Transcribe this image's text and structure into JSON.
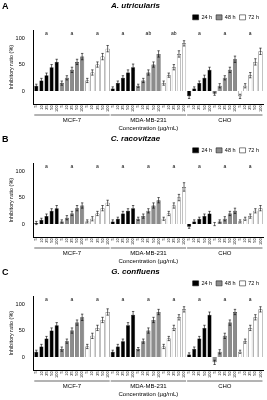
{
  "chart_data": [
    {
      "type": "bar",
      "panel": "A",
      "title": "A. utricularis",
      "x_label": "Concentration (µg/mL)",
      "y_label": "Inhibitory ratio (%)",
      "categories": [
        "5",
        "10",
        "25",
        "50",
        "100",
        "5",
        "10",
        "25",
        "50",
        "100",
        "5",
        "10",
        "25",
        "50",
        "100",
        "5",
        "10",
        "25",
        "50",
        "100",
        "5",
        "10",
        "25",
        "50",
        "100",
        "5",
        "10",
        "25",
        "50",
        "100",
        "5",
        "10",
        "25",
        "50",
        "100",
        "5",
        "10",
        "25",
        "50",
        "100",
        "5",
        "10",
        "25",
        "50",
        "100"
      ],
      "group_labels": [
        "MCF-7",
        "MDA-MB-231",
        "CHO"
      ],
      "group_letters": [
        "a",
        "a",
        "a",
        "a",
        "ab",
        "ab",
        "a",
        "a",
        "a"
      ],
      "series": [
        {
          "name": "24 h",
          "color": "#000000",
          "values": [
            10,
            20,
            30,
            45,
            55,
            null,
            null,
            null,
            null,
            null,
            null,
            null,
            null,
            null,
            null,
            5,
            15,
            25,
            35,
            45,
            null,
            null,
            null,
            null,
            null,
            null,
            null,
            null,
            null,
            null,
            -10,
            5,
            15,
            25,
            40,
            null,
            null,
            null,
            null,
            null,
            null,
            null,
            null,
            null,
            null
          ],
          "errors": [
            3,
            4,
            4,
            5,
            5,
            null,
            null,
            null,
            null,
            null,
            null,
            null,
            null,
            null,
            null,
            3,
            4,
            4,
            5,
            6,
            null,
            null,
            null,
            null,
            null,
            null,
            null,
            null,
            null,
            null,
            4,
            3,
            4,
            5,
            5,
            null,
            null,
            null,
            null,
            null,
            null,
            null,
            null,
            null,
            null
          ]
        },
        {
          "name": "48 h",
          "color": "#8c8c8c",
          "values": [
            null,
            null,
            null,
            null,
            null,
            15,
            25,
            40,
            55,
            65,
            null,
            null,
            null,
            null,
            null,
            null,
            null,
            null,
            null,
            null,
            10,
            20,
            35,
            50,
            70,
            null,
            null,
            null,
            null,
            null,
            null,
            null,
            null,
            null,
            null,
            -5,
            10,
            25,
            40,
            60,
            null,
            null,
            null,
            null,
            null
          ],
          "errors": [
            null,
            null,
            null,
            null,
            null,
            4,
            4,
            5,
            5,
            6,
            null,
            null,
            null,
            null,
            null,
            null,
            null,
            null,
            null,
            null,
            3,
            4,
            5,
            5,
            6,
            null,
            null,
            null,
            null,
            null,
            null,
            null,
            null,
            null,
            null,
            3,
            4,
            4,
            5,
            6,
            null,
            null,
            null,
            null,
            null
          ]
        },
        {
          "name": "72 h",
          "color": "#ffffff",
          "values": [
            null,
            null,
            null,
            null,
            null,
            null,
            null,
            null,
            null,
            null,
            20,
            35,
            50,
            65,
            80,
            null,
            null,
            null,
            null,
            null,
            null,
            null,
            null,
            null,
            null,
            15,
            30,
            45,
            70,
            90,
            null,
            null,
            null,
            null,
            null,
            null,
            null,
            null,
            null,
            null,
            -10,
            10,
            30,
            55,
            75
          ],
          "errors": [
            null,
            null,
            null,
            null,
            null,
            null,
            null,
            null,
            null,
            null,
            4,
            5,
            5,
            6,
            6,
            null,
            null,
            null,
            null,
            null,
            null,
            null,
            null,
            null,
            null,
            4,
            4,
            5,
            6,
            5,
            null,
            null,
            null,
            null,
            null,
            null,
            null,
            null,
            null,
            null,
            4,
            4,
            5,
            6,
            6
          ]
        }
      ],
      "ylim": [
        -25,
        115
      ],
      "yticks": [
        0,
        50,
        100
      ],
      "grid": false,
      "legend": "top-right"
    },
    {
      "type": "bar",
      "panel": "B",
      "title": "C. racovitzae",
      "x_label": "Concentration (µg/mL)",
      "y_label": "Inhibitory ratio (%)",
      "categories": [
        "5",
        "10",
        "25",
        "50",
        "100",
        "5",
        "10",
        "25",
        "50",
        "100",
        "5",
        "10",
        "25",
        "50",
        "100",
        "5",
        "10",
        "25",
        "50",
        "100",
        "5",
        "10",
        "25",
        "50",
        "100",
        "5",
        "10",
        "25",
        "50",
        "100",
        "5",
        "10",
        "25",
        "50",
        "100",
        "5",
        "10",
        "25",
        "50",
        "100",
        "5",
        "10",
        "25",
        "50",
        "100"
      ],
      "group_labels": [
        "MCF-7",
        "MDA-MB-231",
        "CHO"
      ],
      "group_letters": [
        "a",
        "a",
        "a",
        "a",
        "a",
        "a",
        "a",
        "a",
        "a"
      ],
      "series": [
        {
          "name": "24 h",
          "color": "#000000",
          "values": [
            2,
            8,
            15,
            25,
            30,
            null,
            null,
            null,
            null,
            null,
            null,
            null,
            null,
            null,
            null,
            5,
            10,
            20,
            25,
            30,
            null,
            null,
            null,
            null,
            null,
            null,
            null,
            null,
            null,
            null,
            -5,
            5,
            10,
            15,
            20,
            null,
            null,
            null,
            null,
            null,
            null,
            null,
            null,
            null,
            null
          ],
          "errors": [
            3,
            3,
            4,
            4,
            5,
            null,
            null,
            null,
            null,
            null,
            null,
            null,
            null,
            null,
            null,
            3,
            3,
            4,
            4,
            5,
            null,
            null,
            null,
            null,
            null,
            null,
            null,
            null,
            null,
            null,
            3,
            3,
            3,
            4,
            4,
            null,
            null,
            null,
            null,
            null,
            null,
            null,
            null,
            null,
            null
          ]
        },
        {
          "name": "48 h",
          "color": "#8c8c8c",
          "values": [
            null,
            null,
            null,
            null,
            null,
            5,
            12,
            20,
            30,
            35,
            null,
            null,
            null,
            null,
            null,
            null,
            null,
            null,
            null,
            null,
            10,
            15,
            25,
            35,
            45,
            null,
            null,
            null,
            null,
            null,
            null,
            null,
            null,
            null,
            null,
            0,
            5,
            10,
            20,
            25,
            null,
            null,
            null,
            null,
            null
          ],
          "errors": [
            null,
            null,
            null,
            null,
            null,
            3,
            4,
            4,
            5,
            5,
            null,
            null,
            null,
            null,
            null,
            null,
            null,
            null,
            null,
            null,
            3,
            4,
            4,
            5,
            5,
            null,
            null,
            null,
            null,
            null,
            null,
            null,
            null,
            null,
            null,
            3,
            3,
            4,
            4,
            5,
            null,
            null,
            null,
            null,
            null
          ]
        },
        {
          "name": "72 h",
          "color": "#ffffff",
          "values": [
            null,
            null,
            null,
            null,
            null,
            null,
            null,
            null,
            null,
            null,
            5,
            10,
            20,
            30,
            40,
            null,
            null,
            null,
            null,
            null,
            null,
            null,
            null,
            null,
            null,
            10,
            20,
            35,
            50,
            70,
            null,
            null,
            null,
            null,
            null,
            null,
            null,
            null,
            null,
            null,
            5,
            10,
            15,
            25,
            30
          ],
          "errors": [
            null,
            null,
            null,
            null,
            null,
            null,
            null,
            null,
            null,
            null,
            3,
            4,
            4,
            5,
            5,
            null,
            null,
            null,
            null,
            null,
            null,
            null,
            null,
            null,
            null,
            3,
            4,
            5,
            6,
            8,
            null,
            null,
            null,
            null,
            null,
            null,
            null,
            null,
            null,
            null,
            3,
            3,
            4,
            4,
            5
          ]
        }
      ],
      "ylim": [
        -25,
        115
      ],
      "yticks": [
        0,
        50,
        100
      ],
      "grid": false,
      "legend": "top-right"
    },
    {
      "type": "bar",
      "panel": "C",
      "title": "G. confluens",
      "x_label": "Concentration (µg/mL)",
      "y_label": "Inhibitory ratio (%)",
      "categories": [
        "5",
        "10",
        "25",
        "50",
        "100",
        "5",
        "10",
        "25",
        "50",
        "100",
        "5",
        "10",
        "25",
        "50",
        "100",
        "5",
        "10",
        "25",
        "50",
        "100",
        "5",
        "10",
        "25",
        "50",
        "100",
        "5",
        "10",
        "25",
        "50",
        "100",
        "5",
        "10",
        "25",
        "50",
        "100",
        "5",
        "10",
        "25",
        "50",
        "100",
        "5",
        "10",
        "25",
        "50",
        "100"
      ],
      "group_labels": [
        "MCF-7",
        "MDA-MB-231",
        "CHO"
      ],
      "group_letters": [
        "a",
        "a",
        "a",
        "a",
        "a",
        "a",
        "a",
        "a",
        "a"
      ],
      "series": [
        {
          "name": "24 h",
          "color": "#000000",
          "values": [
            10,
            20,
            35,
            50,
            60,
            null,
            null,
            null,
            null,
            null,
            null,
            null,
            null,
            null,
            null,
            10,
            20,
            30,
            60,
            80,
            null,
            null,
            null,
            null,
            null,
            null,
            null,
            null,
            null,
            null,
            5,
            15,
            35,
            55,
            80,
            null,
            null,
            null,
            null,
            null,
            null,
            null,
            null,
            null,
            null
          ],
          "errors": [
            3,
            4,
            4,
            5,
            5,
            null,
            null,
            null,
            null,
            null,
            null,
            null,
            null,
            null,
            null,
            3,
            4,
            4,
            5,
            6,
            null,
            null,
            null,
            null,
            null,
            null,
            null,
            null,
            null,
            null,
            3,
            4,
            4,
            5,
            5,
            null,
            null,
            null,
            null,
            null,
            null,
            null,
            null,
            null,
            null
          ]
        },
        {
          "name": "48 h",
          "color": "#8c8c8c",
          "values": [
            null,
            null,
            null,
            null,
            null,
            15,
            30,
            50,
            65,
            75,
            null,
            null,
            null,
            null,
            null,
            null,
            null,
            null,
            null,
            null,
            15,
            30,
            50,
            70,
            85,
            null,
            null,
            null,
            null,
            null,
            null,
            null,
            null,
            null,
            null,
            -10,
            10,
            40,
            65,
            85,
            null,
            null,
            null,
            null,
            null
          ],
          "errors": [
            null,
            null,
            null,
            null,
            null,
            4,
            4,
            5,
            5,
            6,
            null,
            null,
            null,
            null,
            null,
            null,
            null,
            null,
            null,
            null,
            3,
            4,
            5,
            5,
            5,
            null,
            null,
            null,
            null,
            null,
            null,
            null,
            null,
            null,
            null,
            4,
            4,
            5,
            5,
            5,
            null,
            null,
            null,
            null,
            null
          ]
        },
        {
          "name": "72 h",
          "color": "#ffffff",
          "values": [
            null,
            null,
            null,
            null,
            null,
            null,
            null,
            null,
            null,
            null,
            20,
            40,
            55,
            70,
            85,
            null,
            null,
            null,
            null,
            null,
            null,
            null,
            null,
            null,
            null,
            20,
            35,
            55,
            75,
            90,
            null,
            null,
            null,
            null,
            null,
            null,
            null,
            null,
            null,
            null,
            10,
            30,
            55,
            75,
            90
          ],
          "errors": [
            null,
            null,
            null,
            null,
            null,
            null,
            null,
            null,
            null,
            null,
            4,
            5,
            5,
            5,
            6,
            null,
            null,
            null,
            null,
            null,
            null,
            null,
            null,
            null,
            null,
            4,
            4,
            5,
            5,
            5,
            null,
            null,
            null,
            null,
            null,
            null,
            null,
            null,
            null,
            null,
            3,
            4,
            5,
            5,
            5
          ]
        }
      ],
      "ylim": [
        -25,
        115
      ],
      "yticks": [
        0,
        50,
        100
      ],
      "grid": false,
      "legend": "top-right"
    }
  ]
}
